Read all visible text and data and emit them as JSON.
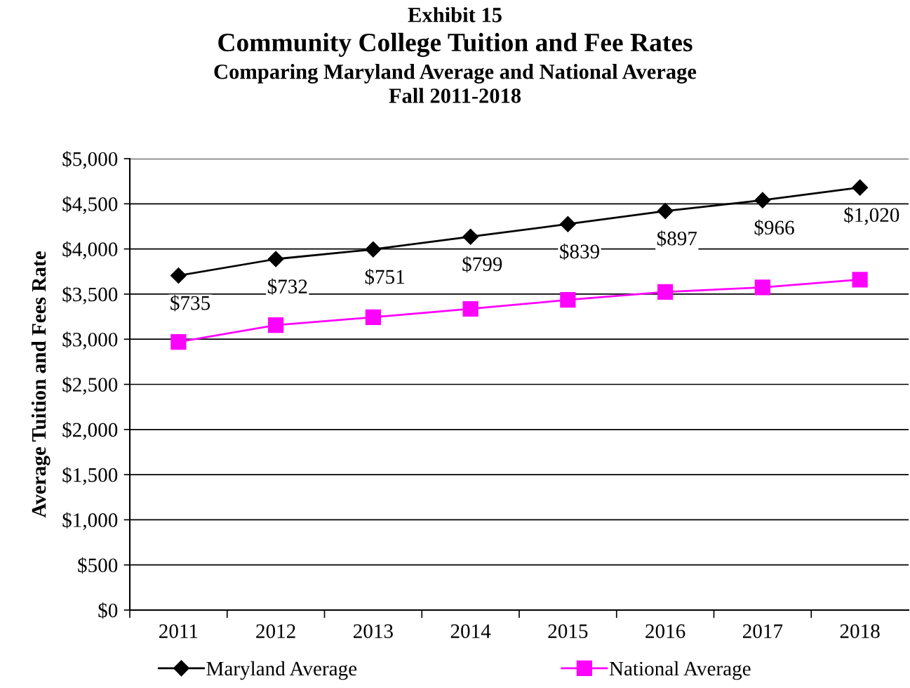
{
  "chart_data": {
    "type": "line",
    "title": "Exhibit 15\nCommunity College Tuition and Fee Rates",
    "subtitle": "Comparing Maryland Average and National Average\nFall 2011-2018",
    "ylabel": "Average Tuition and Fees Rate",
    "categories": [
      "2011",
      "2012",
      "2013",
      "2014",
      "2015",
      "2016",
      "2017",
      "2018"
    ],
    "series": [
      {
        "name": "Maryland Average",
        "color": "#000000",
        "marker": "diamond",
        "values": [
          3705,
          3888,
          3995,
          4135,
          4275,
          4420,
          4540,
          4680
        ]
      },
      {
        "name": "National Average",
        "color": "#ff00ff",
        "marker": "square",
        "values": [
          2970,
          3156,
          3244,
          3336,
          3436,
          3523,
          3574,
          3660
        ]
      }
    ],
    "ylim": [
      0,
      5000
    ],
    "yticks": [
      {
        "value": 0,
        "label": "$0"
      },
      {
        "value": 500,
        "label": "$500"
      },
      {
        "value": 1000,
        "label": "$1,000"
      },
      {
        "value": 1500,
        "label": "$1,500"
      },
      {
        "value": 2000,
        "label": "$2,000"
      },
      {
        "value": 2500,
        "label": "$2,500"
      },
      {
        "value": 3000,
        "label": "$3,000"
      },
      {
        "value": 3500,
        "label": "$3,500"
      },
      {
        "value": 4000,
        "label": "$4,000"
      },
      {
        "value": 4500,
        "label": "$4,500"
      },
      {
        "value": 5000,
        "label": "$5,000"
      }
    ],
    "annotations": [
      "$735",
      "$732",
      "$751",
      "$799",
      "$839",
      "$897",
      "$966",
      "$1,020"
    ],
    "grid": "y",
    "legend": "bottom",
    "line_style": "solid"
  }
}
